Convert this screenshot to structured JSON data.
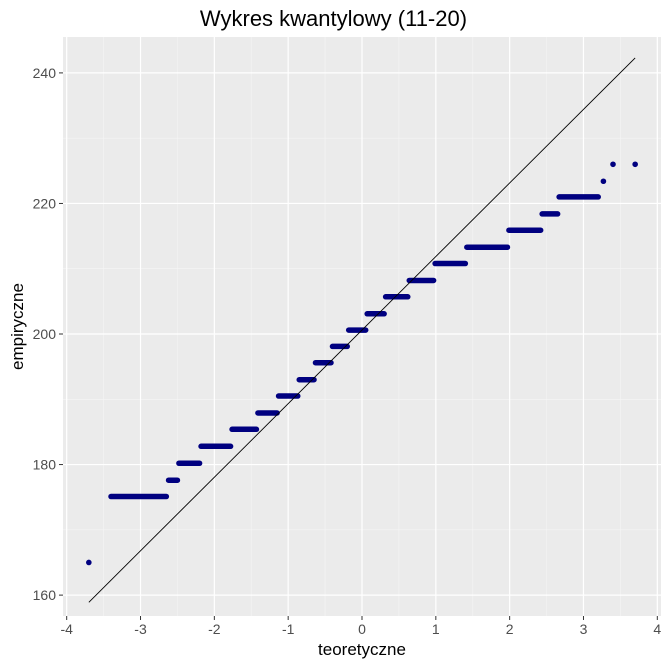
{
  "colors": {
    "panel_bg": "#ebebeb",
    "grid_major": "#ffffff",
    "grid_minor": "#f5f5f5",
    "points": "#000080",
    "reference_line": "#000000",
    "tick_text": "#4d4d4d"
  },
  "chart_data": {
    "type": "scatter",
    "title": "Wykres kwantylowy (11-20)",
    "xlabel": "teoretyczne",
    "ylabel": "empiryczne",
    "xlim": [
      -4.05,
      4.05
    ],
    "ylim": [
      156.8,
      245.5
    ],
    "x_ticks": [
      -4,
      -3,
      -2,
      -1,
      0,
      1,
      2,
      3,
      4
    ],
    "y_ticks": [
      160,
      180,
      200,
      220,
      240
    ],
    "grid": true,
    "reference_line": {
      "x": [
        -3.7,
        3.7
      ],
      "y": [
        158.9,
        242.3
      ]
    },
    "step_segments": [
      {
        "y": 165.0,
        "x_from": -3.7,
        "x_to": -3.7
      },
      {
        "y": 175.1,
        "x_from": -3.4,
        "x_to": -2.65
      },
      {
        "y": 177.6,
        "x_from": -2.62,
        "x_to": -2.5
      },
      {
        "y": 180.2,
        "x_from": -2.48,
        "x_to": -2.2
      },
      {
        "y": 182.8,
        "x_from": -2.18,
        "x_to": -1.78
      },
      {
        "y": 185.4,
        "x_from": -1.76,
        "x_to": -1.43
      },
      {
        "y": 187.9,
        "x_from": -1.41,
        "x_to": -1.15
      },
      {
        "y": 190.5,
        "x_from": -1.13,
        "x_to": -0.87
      },
      {
        "y": 193.0,
        "x_from": -0.85,
        "x_to": -0.65
      },
      {
        "y": 195.6,
        "x_from": -0.63,
        "x_to": -0.42
      },
      {
        "y": 198.1,
        "x_from": -0.4,
        "x_to": -0.2
      },
      {
        "y": 200.6,
        "x_from": -0.18,
        "x_to": 0.05
      },
      {
        "y": 203.1,
        "x_from": 0.07,
        "x_to": 0.3
      },
      {
        "y": 205.7,
        "x_from": 0.32,
        "x_to": 0.62
      },
      {
        "y": 208.2,
        "x_from": 0.64,
        "x_to": 0.97
      },
      {
        "y": 210.8,
        "x_from": 0.99,
        "x_to": 1.4
      },
      {
        "y": 213.3,
        "x_from": 1.42,
        "x_to": 1.97
      },
      {
        "y": 215.9,
        "x_from": 1.99,
        "x_to": 2.42
      },
      {
        "y": 218.4,
        "x_from": 2.44,
        "x_to": 2.65
      },
      {
        "y": 221.0,
        "x_from": 2.67,
        "x_to": 3.2
      },
      {
        "y": 223.4,
        "x_from": 3.27,
        "x_to": 3.27
      },
      {
        "y": 226.0,
        "x_from": 3.4,
        "x_to": 3.4
      },
      {
        "y": 226.0,
        "x_from": 3.7,
        "x_to": 3.7
      }
    ]
  }
}
